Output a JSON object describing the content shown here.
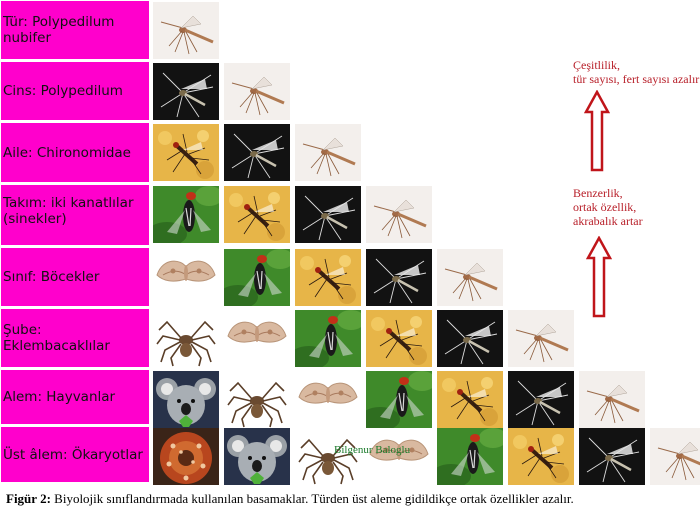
{
  "levels": [
    {
      "label": "Tür: Polypedilum nubifer",
      "tiles": [
        "mosquito"
      ]
    },
    {
      "label": "Cins: Polypedilum",
      "tiles": [
        "midge-dark",
        "mosquito"
      ]
    },
    {
      "label": "Aile: Chironomidae",
      "tiles": [
        "fly-yellow",
        "midge-dark",
        "mosquito"
      ]
    },
    {
      "label": "Takım: iki kanatlılar\n      (sinekler)",
      "tiles": [
        "fly-green",
        "fly-yellow",
        "midge-dark",
        "mosquito"
      ]
    },
    {
      "label": "Sınıf: Böcekler",
      "tiles": [
        "moth",
        "fly-green",
        "fly-yellow",
        "midge-dark",
        "mosquito"
      ]
    },
    {
      "label": "Şube: Eklembacaklılar",
      "tiles": [
        "spider",
        "moth",
        "fly-green",
        "fly-yellow",
        "midge-dark",
        "mosquito"
      ]
    },
    {
      "label": "Alem: Hayvanlar",
      "tiles": [
        "koala",
        "spider",
        "moth",
        "fly-green",
        "fly-yellow",
        "midge-dark",
        "mosquito"
      ]
    },
    {
      "label": "Üst âlem: Ökaryotlar",
      "tiles": [
        "flower",
        "koala",
        "spider",
        "moth",
        "fly-green",
        "fly-yellow",
        "midge-dark",
        "mosquito"
      ]
    }
  ],
  "notes": {
    "top": "Çeşitlilik,\ntür sayısı, fert sayısı azalır",
    "bottom": "Benzerlik,\nortak özellik,\nakrabalık artar"
  },
  "watermark": "Bilgenur Baloglu",
  "caption": {
    "prefix": "Figür 2:",
    "text": " Biyolojik sınıflandırmada kullanılan basamaklar. Türden üst aleme gidildikçe ortak özellikler azalır."
  },
  "colors": {
    "label_bg": "#ff00cc",
    "arrow": "#c0151a",
    "note": "#b8202a"
  }
}
